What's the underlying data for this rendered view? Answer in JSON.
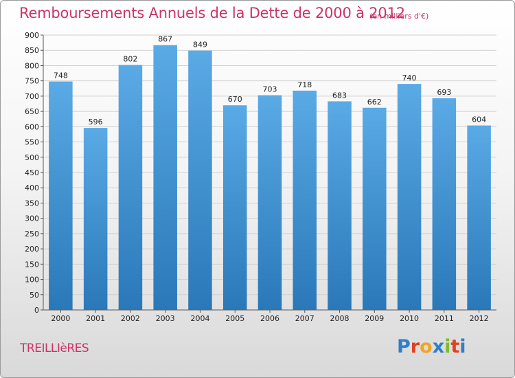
{
  "header": {
    "title": "Remboursements Annuels de la Dette de 2000 à 2012",
    "subtitle": "(en milliers d'€)"
  },
  "footer": {
    "town": "TREILLIèRES",
    "logo": [
      "P",
      "r",
      "o",
      "x",
      "i",
      "t",
      "i"
    ],
    "logo_colors": [
      "#2e7fc6",
      "#e0411f",
      "#f2a51e",
      "#2e7fc6",
      "#7cbb2e",
      "#e0411f",
      "#2e7fc6"
    ]
  },
  "chart_data": {
    "type": "bar",
    "title": "Remboursements Annuels de la Dette de 2000 à 2012",
    "subtitle": "(en milliers d'€)",
    "xlabel": "",
    "ylabel": "",
    "categories": [
      "2000",
      "2001",
      "2002",
      "2003",
      "2004",
      "2005",
      "2006",
      "2007",
      "2008",
      "2009",
      "2010",
      "2011",
      "2012"
    ],
    "values": [
      748,
      596,
      802,
      867,
      849,
      670,
      703,
      718,
      683,
      662,
      740,
      693,
      604
    ],
    "ylim": [
      0,
      900
    ],
    "yticks": [
      0,
      50,
      100,
      150,
      200,
      250,
      300,
      350,
      400,
      450,
      500,
      550,
      600,
      650,
      700,
      750,
      800,
      850,
      900
    ],
    "grid": true,
    "bar_color_top": "#5aaae6",
    "bar_color_bottom": "#2a78b8",
    "grid_color": "#d0d0d0"
  }
}
